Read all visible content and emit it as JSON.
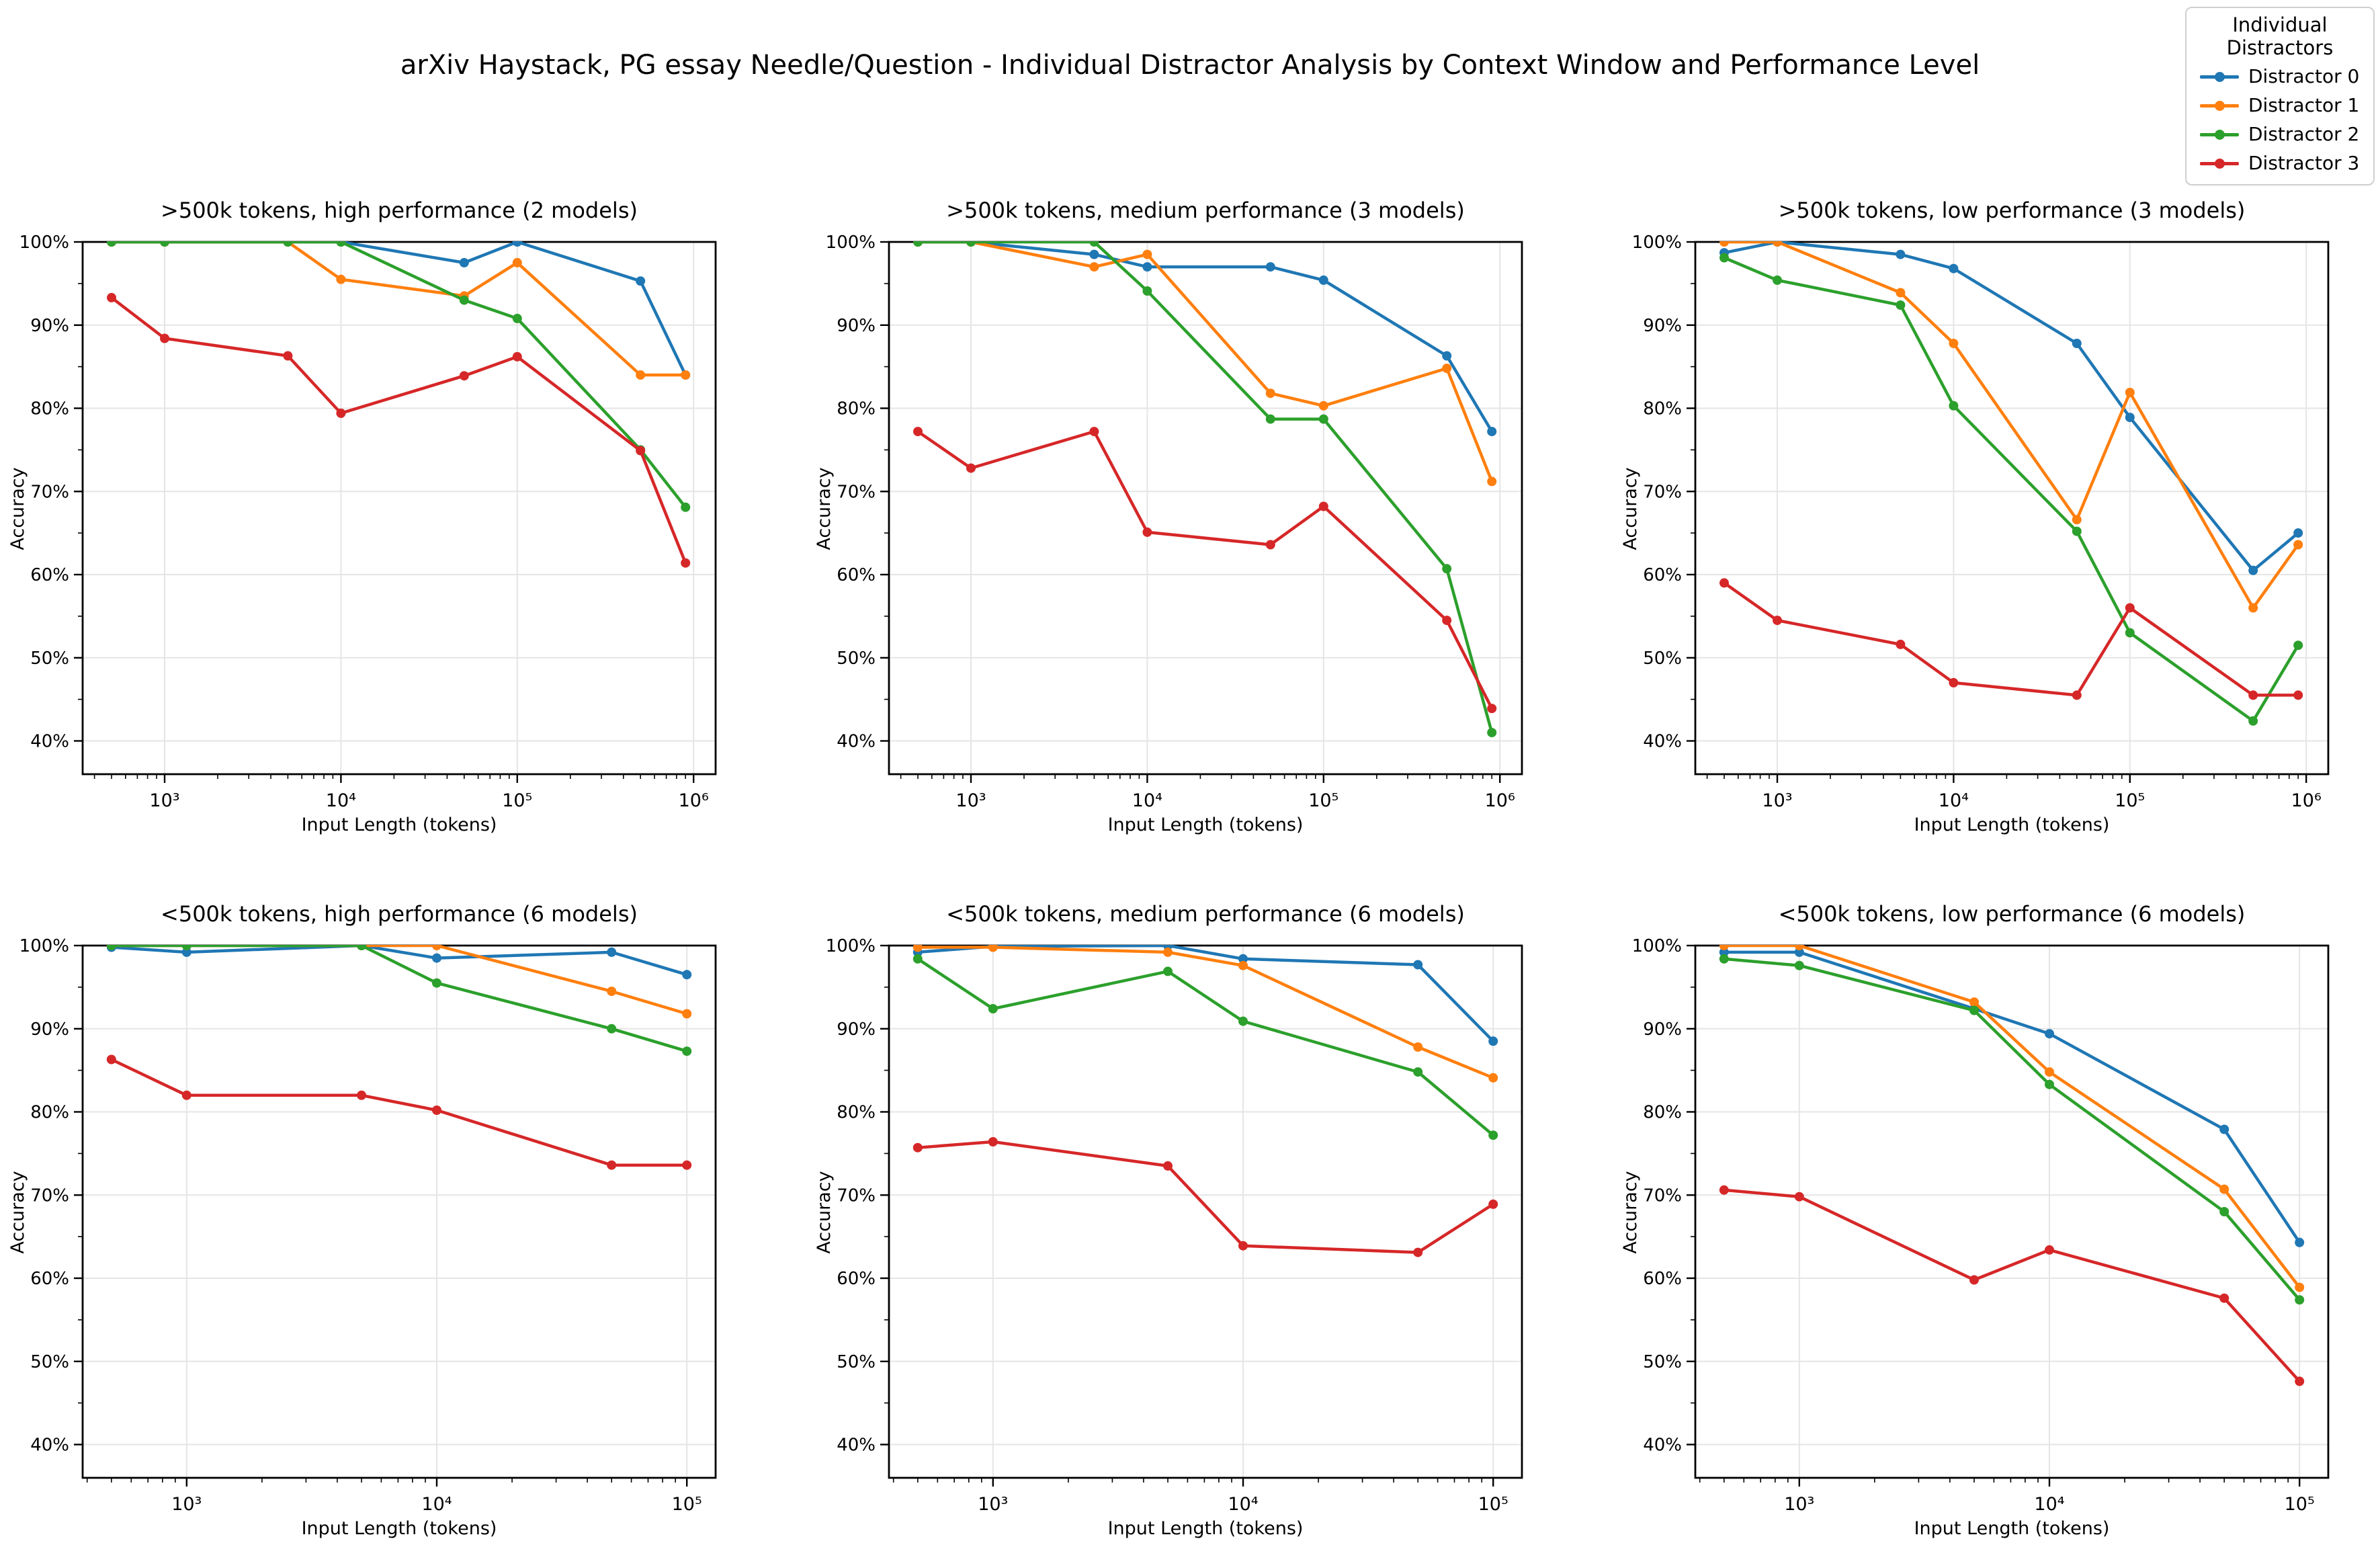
{
  "title": "arXiv Haystack, PG essay Needle/Question - Individual Distractor Analysis by Context Window and Performance Level",
  "legend": {
    "title": "Individual Distractors",
    "entries": [
      {
        "label": "Distractor 0",
        "color": "#1f77b4"
      },
      {
        "label": "Distractor 1",
        "color": "#ff7f0e"
      },
      {
        "label": "Distractor 2",
        "color": "#2ca02c"
      },
      {
        "label": "Distractor 3",
        "color": "#d62728"
      }
    ]
  },
  "chart_data": [
    {
      "type": "line",
      "title": ">500k tokens, high performance (2 models)",
      "xlabel": "Input Length (tokens)",
      "ylabel": "Accuracy",
      "x_scale": "log",
      "x": [
        500,
        1000,
        5000,
        10000,
        50000,
        100000,
        500000,
        900000
      ],
      "x_tick_values": [
        1000,
        10000,
        100000,
        1000000
      ],
      "x_tick_labels": [
        "10³",
        "10⁴",
        "10⁵",
        "10⁶"
      ],
      "xlim_log": [
        2.535,
        6.125
      ],
      "ylim": [
        36,
        100
      ],
      "y_ticks": [
        40,
        50,
        60,
        70,
        80,
        90,
        100
      ],
      "y_tick_labels": [
        "40%",
        "50%",
        "60%",
        "70%",
        "80%",
        "90%",
        "100%"
      ],
      "grid": true,
      "series": [
        {
          "name": "Distractor 0",
          "color": "#1f77b4",
          "values": [
            100,
            100,
            100,
            100,
            97.5,
            100,
            95.3,
            84.0
          ]
        },
        {
          "name": "Distractor 1",
          "color": "#ff7f0e",
          "values": [
            100,
            100,
            100,
            95.5,
            93.5,
            97.5,
            84.0,
            84.0
          ]
        },
        {
          "name": "Distractor 2",
          "color": "#2ca02c",
          "values": [
            100,
            100,
            100,
            100,
            93.0,
            90.8,
            75.0,
            68.1
          ]
        },
        {
          "name": "Distractor 3",
          "color": "#d62728",
          "values": [
            93.3,
            88.4,
            86.3,
            79.4,
            83.9,
            86.2,
            74.9,
            61.4
          ]
        }
      ]
    },
    {
      "type": "line",
      "title": ">500k tokens, medium performance (3 models)",
      "xlabel": "Input Length (tokens)",
      "ylabel": "Accuracy",
      "x_scale": "log",
      "x": [
        500,
        1000,
        5000,
        10000,
        50000,
        100000,
        500000,
        900000
      ],
      "x_tick_values": [
        1000,
        10000,
        100000,
        1000000
      ],
      "x_tick_labels": [
        "10³",
        "10⁴",
        "10⁵",
        "10⁶"
      ],
      "xlim_log": [
        2.535,
        6.125
      ],
      "ylim": [
        36,
        100
      ],
      "y_ticks": [
        40,
        50,
        60,
        70,
        80,
        90,
        100
      ],
      "y_tick_labels": [
        "40%",
        "50%",
        "60%",
        "70%",
        "80%",
        "90%",
        "100%"
      ],
      "grid": true,
      "series": [
        {
          "name": "Distractor 0",
          "color": "#1f77b4",
          "values": [
            100,
            100,
            98.5,
            97.0,
            97.0,
            95.4,
            86.3,
            77.2
          ]
        },
        {
          "name": "Distractor 1",
          "color": "#ff7f0e",
          "values": [
            100,
            100,
            97.0,
            98.5,
            81.8,
            80.3,
            84.8,
            71.2
          ]
        },
        {
          "name": "Distractor 2",
          "color": "#2ca02c",
          "values": [
            100,
            100,
            100,
            94.1,
            78.7,
            78.7,
            60.7,
            41.0
          ]
        },
        {
          "name": "Distractor 3",
          "color": "#d62728",
          "values": [
            77.2,
            72.8,
            77.2,
            65.1,
            63.6,
            68.2,
            54.5,
            43.9
          ]
        }
      ]
    },
    {
      "type": "line",
      "title": ">500k tokens, low performance (3 models)",
      "xlabel": "Input Length (tokens)",
      "ylabel": "Accuracy",
      "x_scale": "log",
      "x": [
        500,
        1000,
        5000,
        10000,
        50000,
        100000,
        500000,
        900000
      ],
      "x_tick_values": [
        1000,
        10000,
        100000,
        1000000
      ],
      "x_tick_labels": [
        "10³",
        "10⁴",
        "10⁵",
        "10⁶"
      ],
      "xlim_log": [
        2.535,
        6.125
      ],
      "ylim": [
        36,
        100
      ],
      "y_ticks": [
        40,
        50,
        60,
        70,
        80,
        90,
        100
      ],
      "y_tick_labels": [
        "40%",
        "50%",
        "60%",
        "70%",
        "80%",
        "90%",
        "100%"
      ],
      "grid": true,
      "series": [
        {
          "name": "Distractor 0",
          "color": "#1f77b4",
          "values": [
            98.7,
            100,
            98.5,
            96.8,
            87.8,
            78.9,
            60.5,
            65.0
          ]
        },
        {
          "name": "Distractor 1",
          "color": "#ff7f0e",
          "values": [
            100,
            100,
            93.9,
            87.8,
            66.6,
            81.9,
            56.0,
            63.6
          ]
        },
        {
          "name": "Distractor 2",
          "color": "#2ca02c",
          "values": [
            98.1,
            95.4,
            92.4,
            80.3,
            65.2,
            53.0,
            42.4,
            51.5
          ]
        },
        {
          "name": "Distractor 3",
          "color": "#d62728",
          "values": [
            59.0,
            54.5,
            51.6,
            47.0,
            45.5,
            56.0,
            45.5,
            45.5
          ]
        }
      ]
    },
    {
      "type": "line",
      "title": "<500k tokens, high performance (6 models)",
      "xlabel": "Input Length (tokens)",
      "ylabel": "Accuracy",
      "x_scale": "log",
      "x": [
        500,
        1000,
        5000,
        10000,
        50000,
        100000
      ],
      "x_tick_values": [
        1000,
        10000,
        100000
      ],
      "x_tick_labels": [
        "10³",
        "10⁴",
        "10⁵"
      ],
      "xlim_log": [
        2.584,
        5.115
      ],
      "ylim": [
        36,
        100
      ],
      "y_ticks": [
        40,
        50,
        60,
        70,
        80,
        90,
        100
      ],
      "y_tick_labels": [
        "40%",
        "50%",
        "60%",
        "70%",
        "80%",
        "90%",
        "100%"
      ],
      "grid": true,
      "series": [
        {
          "name": "Distractor 0",
          "color": "#1f77b4",
          "values": [
            99.8,
            99.2,
            100,
            98.5,
            99.2,
            96.5
          ]
        },
        {
          "name": "Distractor 1",
          "color": "#ff7f0e",
          "values": [
            100,
            100,
            100,
            100,
            94.5,
            91.8
          ]
        },
        {
          "name": "Distractor 2",
          "color": "#2ca02c",
          "values": [
            100,
            100,
            100,
            95.5,
            90.0,
            87.3
          ]
        },
        {
          "name": "Distractor 3",
          "color": "#d62728",
          "values": [
            86.3,
            82.0,
            82.0,
            80.2,
            73.6,
            73.6
          ]
        }
      ]
    },
    {
      "type": "line",
      "title": "<500k tokens, medium performance (6 models)",
      "xlabel": "Input Length (tokens)",
      "ylabel": "Accuracy",
      "x_scale": "log",
      "x": [
        500,
        1000,
        5000,
        10000,
        50000,
        100000
      ],
      "x_tick_values": [
        1000,
        10000,
        100000
      ],
      "x_tick_labels": [
        "10³",
        "10⁴",
        "10⁵"
      ],
      "xlim_log": [
        2.584,
        5.115
      ],
      "ylim": [
        36,
        100
      ],
      "y_ticks": [
        40,
        50,
        60,
        70,
        80,
        90,
        100
      ],
      "y_tick_labels": [
        "40%",
        "50%",
        "60%",
        "70%",
        "80%",
        "90%",
        "100%"
      ],
      "grid": true,
      "series": [
        {
          "name": "Distractor 0",
          "color": "#1f77b4",
          "values": [
            99.2,
            99.9,
            100,
            98.4,
            97.7,
            88.5
          ]
        },
        {
          "name": "Distractor 1",
          "color": "#ff7f0e",
          "values": [
            99.8,
            99.8,
            99.2,
            97.6,
            87.8,
            84.1
          ]
        },
        {
          "name": "Distractor 2",
          "color": "#2ca02c",
          "values": [
            98.4,
            92.4,
            96.9,
            90.9,
            84.8,
            77.2
          ]
        },
        {
          "name": "Distractor 3",
          "color": "#d62728",
          "values": [
            75.7,
            76.4,
            73.5,
            63.9,
            63.1,
            68.9
          ]
        }
      ]
    },
    {
      "type": "line",
      "title": "<500k tokens, low performance (6 models)",
      "xlabel": "Input Length (tokens)",
      "ylabel": "Accuracy",
      "x_scale": "log",
      "x": [
        500,
        1000,
        5000,
        10000,
        50000,
        100000
      ],
      "x_tick_values": [
        1000,
        10000,
        100000
      ],
      "x_tick_labels": [
        "10³",
        "10⁴",
        "10⁵"
      ],
      "xlim_log": [
        2.584,
        5.115
      ],
      "ylim": [
        36,
        100
      ],
      "y_ticks": [
        40,
        50,
        60,
        70,
        80,
        90,
        100
      ],
      "y_tick_labels": [
        "40%",
        "50%",
        "60%",
        "70%",
        "80%",
        "90%",
        "100%"
      ],
      "grid": true,
      "series": [
        {
          "name": "Distractor 0",
          "color": "#1f77b4",
          "values": [
            99.2,
            99.2,
            92.4,
            89.4,
            77.9,
            64.3
          ]
        },
        {
          "name": "Distractor 1",
          "color": "#ff7f0e",
          "values": [
            100,
            100,
            93.2,
            84.8,
            70.7,
            58.9
          ]
        },
        {
          "name": "Distractor 2",
          "color": "#2ca02c",
          "values": [
            98.4,
            97.6,
            92.2,
            83.3,
            68.0,
            57.4
          ]
        },
        {
          "name": "Distractor 3",
          "color": "#d62728",
          "values": [
            70.6,
            69.8,
            59.8,
            63.4,
            57.6,
            47.6
          ]
        }
      ]
    }
  ]
}
